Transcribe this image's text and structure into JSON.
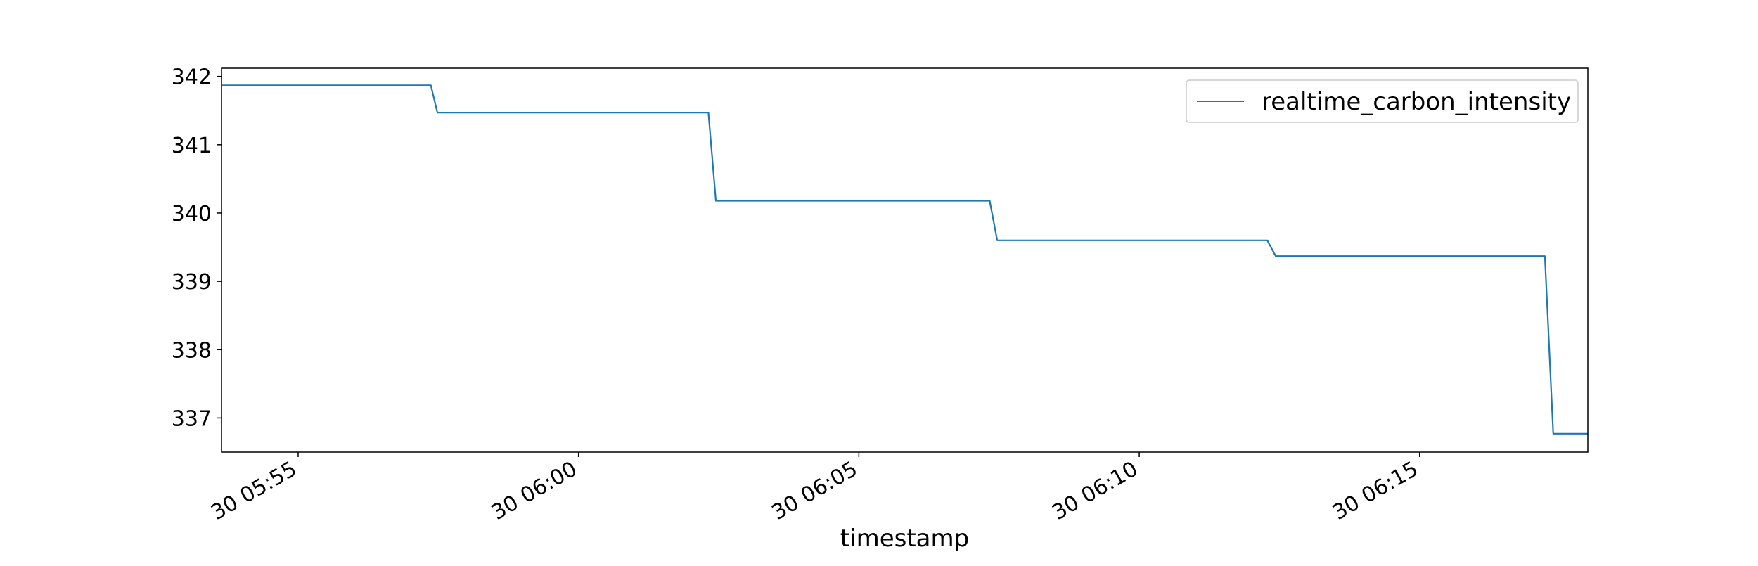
{
  "chart_data": {
    "type": "line",
    "xlabel": "timestamp",
    "ylabel": "",
    "x_axis_kind": "time",
    "xlim": [
      "05:53:38",
      "06:18:00"
    ],
    "ylim": [
      336.5,
      342.12
    ],
    "x_ticks": [
      {
        "value": "05:55",
        "label": "30 05:55"
      },
      {
        "value": "06:00",
        "label": "30 06:00"
      },
      {
        "value": "06:05",
        "label": "30 06:05"
      },
      {
        "value": "06:10",
        "label": "30 06:10"
      },
      {
        "value": "06:15",
        "label": "30 06:15"
      }
    ],
    "y_ticks": [
      {
        "value": 337,
        "label": "337"
      },
      {
        "value": 338,
        "label": "338"
      },
      {
        "value": 339,
        "label": "339"
      },
      {
        "value": 340,
        "label": "340"
      },
      {
        "value": 341,
        "label": "341"
      },
      {
        "value": 342,
        "label": "342"
      }
    ],
    "grid": false,
    "legend_position": "top-right",
    "series": [
      {
        "name": "realtime_carbon_intensity",
        "color": "#1f77b4",
        "x": [
          "05:53:38",
          "05:57:22",
          "05:57:29",
          "06:02:19",
          "06:02:27",
          "06:07:20",
          "06:07:28",
          "06:12:17",
          "06:12:26",
          "06:17:14",
          "06:17:23",
          "06:18:00"
        ],
        "values": [
          341.87,
          341.87,
          341.47,
          341.47,
          340.18,
          340.18,
          339.6,
          339.6,
          339.37,
          339.37,
          336.77,
          336.77
        ]
      }
    ]
  }
}
